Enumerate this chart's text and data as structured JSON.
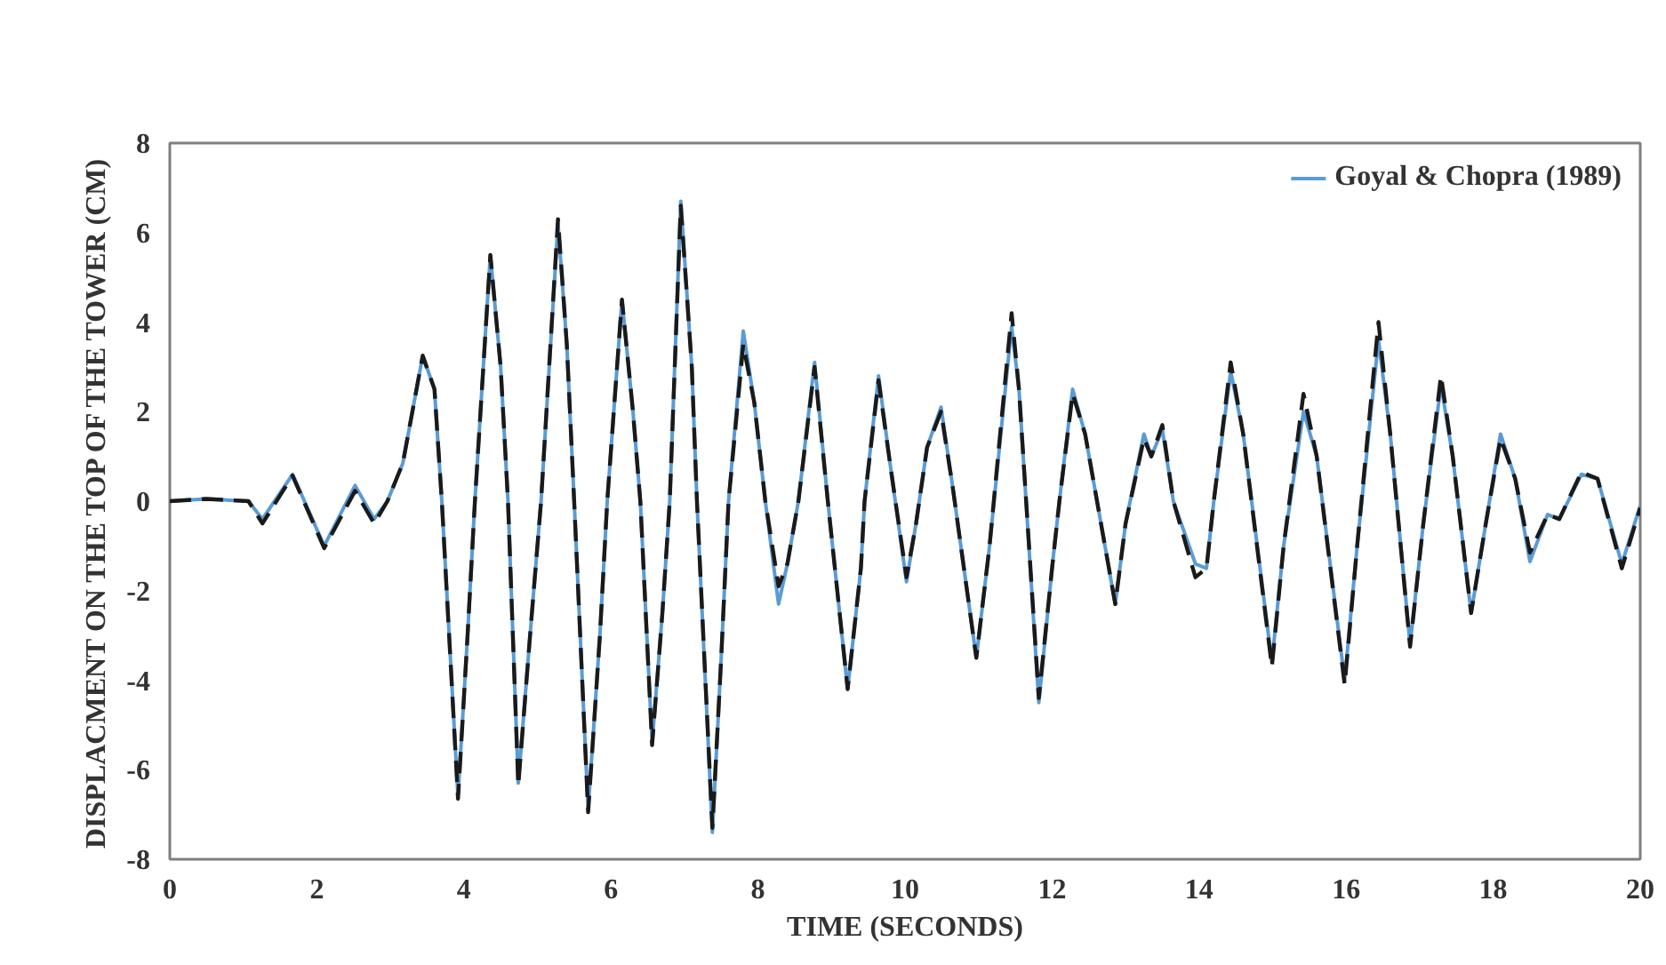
{
  "chart_data": {
    "type": "line",
    "xlabel": "TIME (SECONDS)",
    "ylabel": "DISPLACMENT ON THE TOP OF THE TOWER (CM)",
    "x": [
      0,
      0.5,
      1.07,
      1.26,
      1.67,
      2.1,
      2.52,
      2.78,
      2.96,
      3.17,
      3.44,
      3.6,
      3.7,
      3.92,
      4.05,
      4.15,
      4.36,
      4.5,
      4.6,
      4.74,
      4.9,
      5.05,
      5.28,
      5.4,
      5.5,
      5.69,
      5.85,
      5.95,
      6.15,
      6.3,
      6.4,
      6.56,
      6.7,
      6.8,
      6.95,
      7.1,
      7.17,
      7.38,
      7.5,
      7.6,
      7.8,
      7.95,
      8.1,
      8.28,
      8.4,
      8.55,
      8.77,
      8.95,
      9.22,
      9.4,
      9.45,
      9.64,
      9.8,
      10.02,
      10.15,
      10.3,
      10.49,
      10.65,
      10.97,
      11.15,
      11.45,
      11.55,
      11.82,
      12.0,
      12.1,
      12.28,
      12.45,
      12.86,
      13.0,
      13.25,
      13.35,
      13.5,
      13.65,
      13.95,
      14.1,
      14.2,
      14.43,
      14.6,
      14.99,
      15.15,
      15.42,
      15.6,
      15.98,
      16.15,
      16.44,
      16.6,
      16.87,
      17.05,
      17.29,
      17.45,
      17.7,
      17.9,
      18.1,
      18.3,
      18.5,
      18.74,
      18.9,
      19.2,
      19.42,
      19.75,
      20
    ],
    "series": [
      {
        "name": "Goyal & Chopra (1989)",
        "color": "#5b9bd5",
        "line_style": "solid",
        "values": [
          0,
          0.05,
          0,
          -0.4,
          0.6,
          -1.0,
          0.35,
          -0.4,
          0,
          0.85,
          3.25,
          2.5,
          0,
          -6.6,
          -3,
          0,
          5.5,
          3,
          0,
          -6.3,
          -3,
          0,
          6.2,
          3.5,
          0,
          -6.9,
          -3,
          0,
          4.5,
          2,
          0,
          -5.4,
          -2.5,
          0,
          6.7,
          3,
          0,
          -7.4,
          -3.5,
          0,
          3.8,
          2.2,
          0,
          -2.3,
          -1.4,
          0,
          3.1,
          0,
          -4.2,
          -1.5,
          0,
          2.8,
          0.8,
          -1.8,
          -0.5,
          1.2,
          2.1,
          0.3,
          -3.5,
          -1,
          3.9,
          2.5,
          -4.5,
          -1.5,
          0,
          2.5,
          1.5,
          -2.3,
          -0.5,
          1.5,
          1.0,
          1.6,
          0,
          -1.4,
          -1.5,
          0,
          2.9,
          1.5,
          -3.6,
          -1,
          2.0,
          1,
          -4.0,
          -1,
          3.6,
          1.5,
          -3.2,
          -0.5,
          2.6,
          1,
          -2.5,
          -0.5,
          1.5,
          0.5,
          -1.35,
          -0.3,
          -0.4,
          0.6,
          0.5,
          -1.4,
          -0.1
        ]
      },
      {
        "color": "#1a1a1a",
        "line_style": "dashed",
        "values": [
          0,
          0.05,
          0,
          -0.5,
          0.57,
          -1.05,
          0.23,
          -0.5,
          0,
          0.85,
          3.25,
          2.5,
          0,
          -6.65,
          -3,
          0,
          5.5,
          3,
          0,
          -6.35,
          -3,
          0,
          6.3,
          3.5,
          0,
          -6.95,
          -3,
          0,
          4.5,
          2,
          0,
          -5.45,
          -2.5,
          0,
          6.6,
          3,
          0,
          -7.3,
          -3.5,
          0,
          3.5,
          2.2,
          0,
          -1.9,
          -1.4,
          0,
          3.0,
          0,
          -4.2,
          -1.5,
          0,
          2.7,
          0.8,
          -1.7,
          -0.5,
          1.2,
          2.0,
          0.3,
          -3.5,
          -1,
          4.2,
          2.5,
          -4.4,
          -1.5,
          0,
          2.4,
          1.5,
          -2.3,
          -0.5,
          1.4,
          1.0,
          1.7,
          0,
          -1.7,
          -1.5,
          0,
          3.1,
          1.5,
          -3.7,
          -1,
          2.4,
          1,
          -4.1,
          -1,
          4.0,
          1.5,
          -3.25,
          -0.5,
          2.8,
          1,
          -2.5,
          -0.5,
          1.4,
          0.5,
          -1.15,
          -0.3,
          -0.4,
          0.65,
          0.5,
          -1.5,
          -0.15
        ]
      }
    ],
    "xlim": [
      0,
      20
    ],
    "xticks": [
      0,
      2,
      4,
      6,
      8,
      10,
      12,
      14,
      16,
      18,
      20
    ],
    "ylim": [
      -8,
      8
    ],
    "yticks": [
      -8,
      -6,
      -4,
      -2,
      0,
      2,
      4,
      6,
      8
    ],
    "grid": false,
    "legend": "top right"
  }
}
